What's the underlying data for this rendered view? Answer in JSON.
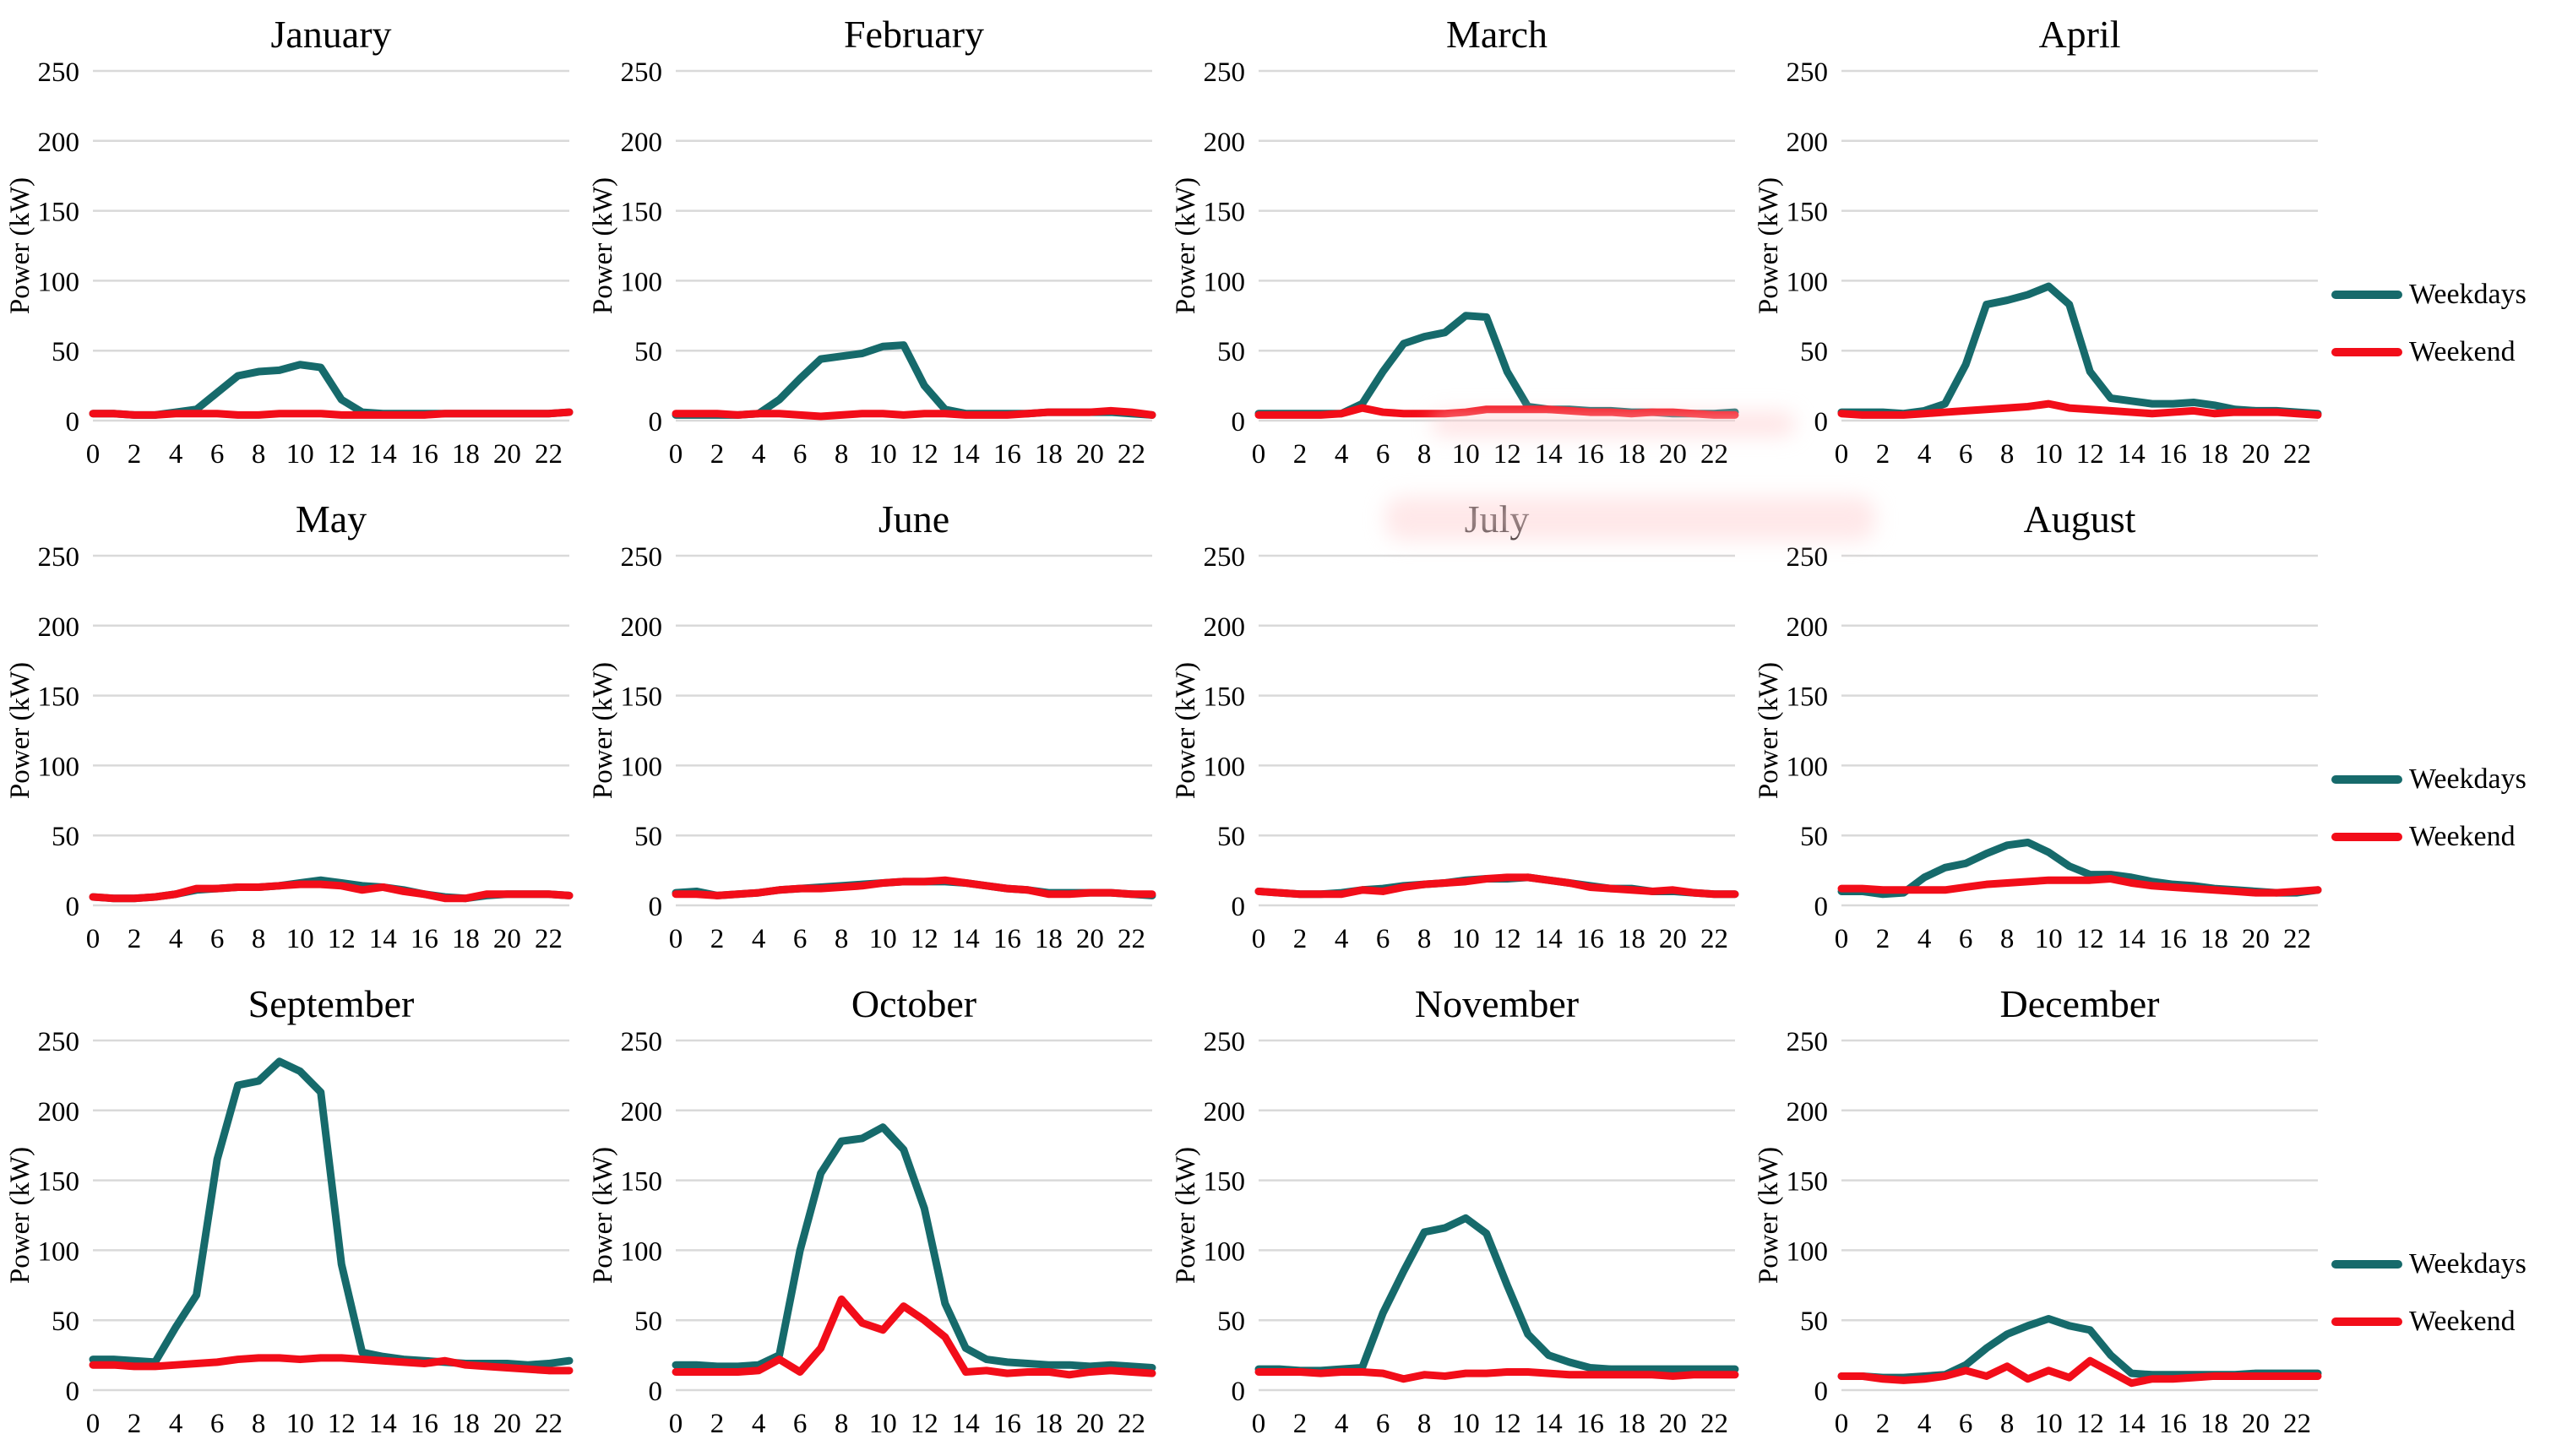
{
  "figure_title": "Monthly daily load profiles",
  "ylabel": "Power (kW)",
  "legend": {
    "weekdays_label": "Weekdays",
    "weekend_label": "Weekend"
  },
  "colors": {
    "weekdays": "#166a6b",
    "weekend": "#f20d19",
    "gridline": "#d9d9d9",
    "text": "#000000"
  },
  "axes": {
    "ylim": [
      0,
      250
    ],
    "yticks": [
      0,
      50,
      100,
      150,
      200,
      250
    ],
    "xlim": [
      0,
      23
    ],
    "xticks": [
      0,
      2,
      4,
      6,
      8,
      10,
      12,
      14,
      16,
      18,
      20,
      22
    ],
    "grid": "horizontal"
  },
  "chart_data": [
    {
      "type": "line",
      "title": "January",
      "series": [
        {
          "name": "Weekdays",
          "values": [
            5,
            5,
            4,
            4,
            6,
            8,
            20,
            32,
            35,
            36,
            40,
            38,
            15,
            6,
            5,
            5,
            5,
            5,
            5,
            5,
            5,
            5,
            5,
            6
          ]
        },
        {
          "name": "Weekend",
          "values": [
            5,
            5,
            4,
            4,
            5,
            5,
            5,
            4,
            4,
            5,
            5,
            5,
            4,
            4,
            4,
            4,
            4,
            5,
            5,
            5,
            5,
            5,
            5,
            6
          ]
        }
      ]
    },
    {
      "type": "line",
      "title": "February",
      "series": [
        {
          "name": "Weekdays",
          "values": [
            4,
            4,
            4,
            4,
            5,
            15,
            30,
            44,
            46,
            48,
            53,
            54,
            25,
            8,
            5,
            5,
            5,
            5,
            6,
            6,
            6,
            6,
            5,
            4
          ]
        },
        {
          "name": "Weekend",
          "values": [
            5,
            5,
            5,
            4,
            5,
            5,
            4,
            3,
            4,
            5,
            5,
            4,
            5,
            5,
            4,
            4,
            4,
            5,
            6,
            6,
            6,
            7,
            6,
            4
          ]
        }
      ]
    },
    {
      "type": "line",
      "title": "March",
      "series": [
        {
          "name": "Weekdays",
          "values": [
            5,
            5,
            5,
            5,
            5,
            12,
            35,
            55,
            60,
            63,
            75,
            74,
            35,
            10,
            8,
            8,
            7,
            7,
            6,
            6,
            5,
            5,
            5,
            6
          ]
        },
        {
          "name": "Weekend",
          "values": [
            4,
            4,
            4,
            4,
            5,
            9,
            6,
            5,
            5,
            5,
            6,
            8,
            8,
            8,
            8,
            7,
            6,
            6,
            5,
            6,
            6,
            5,
            4,
            4
          ]
        }
      ]
    },
    {
      "type": "line",
      "title": "April",
      "series": [
        {
          "name": "Weekdays",
          "values": [
            6,
            6,
            6,
            5,
            7,
            12,
            40,
            83,
            86,
            90,
            96,
            83,
            35,
            16,
            14,
            12,
            12,
            13,
            11,
            8,
            7,
            7,
            6,
            5
          ]
        },
        {
          "name": "Weekend",
          "values": [
            5,
            4,
            4,
            4,
            5,
            6,
            7,
            8,
            9,
            10,
            12,
            9,
            8,
            7,
            6,
            5,
            6,
            7,
            5,
            6,
            6,
            6,
            5,
            4
          ]
        }
      ]
    },
    {
      "type": "line",
      "title": "May",
      "series": [
        {
          "name": "Weekdays",
          "values": [
            6,
            5,
            5,
            6,
            8,
            11,
            12,
            13,
            13,
            14,
            16,
            18,
            16,
            14,
            13,
            11,
            8,
            6,
            5,
            7,
            8,
            8,
            8,
            7
          ]
        },
        {
          "name": "Weekend",
          "values": [
            6,
            5,
            5,
            6,
            8,
            12,
            12,
            13,
            13,
            14,
            15,
            15,
            14,
            11,
            13,
            10,
            8,
            5,
            5,
            8,
            8,
            8,
            8,
            7
          ]
        }
      ]
    },
    {
      "type": "line",
      "title": "June",
      "series": [
        {
          "name": "Weekdays",
          "values": [
            9,
            10,
            7,
            8,
            9,
            11,
            12,
            13,
            14,
            15,
            16,
            17,
            17,
            17,
            16,
            14,
            12,
            11,
            9,
            9,
            9,
            9,
            8,
            7
          ]
        },
        {
          "name": "Weekend",
          "values": [
            8,
            8,
            7,
            8,
            9,
            11,
            12,
            12,
            13,
            14,
            16,
            17,
            17,
            18,
            16,
            14,
            12,
            11,
            8,
            8,
            9,
            9,
            8,
            8
          ]
        }
      ]
    },
    {
      "type": "line",
      "title": "July",
      "series": [
        {
          "name": "Weekdays",
          "values": [
            10,
            9,
            8,
            8,
            9,
            11,
            12,
            14,
            15,
            16,
            18,
            19,
            19,
            20,
            18,
            16,
            14,
            12,
            12,
            10,
            10,
            9,
            8,
            8
          ]
        },
        {
          "name": "Weekend",
          "values": [
            10,
            9,
            8,
            8,
            8,
            11,
            10,
            13,
            15,
            16,
            17,
            19,
            20,
            20,
            18,
            16,
            13,
            12,
            11,
            10,
            11,
            9,
            8,
            8
          ]
        }
      ]
    },
    {
      "type": "line",
      "title": "August",
      "series": [
        {
          "name": "Weekdays",
          "values": [
            10,
            10,
            8,
            9,
            20,
            27,
            30,
            37,
            43,
            45,
            38,
            28,
            22,
            22,
            20,
            17,
            15,
            14,
            12,
            11,
            10,
            9,
            9,
            11
          ]
        },
        {
          "name": "Weekend",
          "values": [
            12,
            12,
            11,
            11,
            11,
            11,
            13,
            15,
            16,
            17,
            18,
            18,
            18,
            19,
            16,
            14,
            13,
            12,
            11,
            10,
            9,
            9,
            10,
            11
          ]
        }
      ]
    },
    {
      "type": "line",
      "title": "September",
      "series": [
        {
          "name": "Weekdays",
          "values": [
            22,
            22,
            21,
            20,
            45,
            68,
            165,
            218,
            221,
            235,
            228,
            213,
            90,
            27,
            24,
            22,
            21,
            20,
            19,
            19,
            19,
            18,
            19,
            21
          ]
        },
        {
          "name": "Weekend",
          "values": [
            18,
            18,
            17,
            17,
            18,
            19,
            20,
            22,
            23,
            23,
            22,
            23,
            23,
            22,
            21,
            20,
            19,
            21,
            18,
            17,
            16,
            15,
            14,
            14
          ]
        }
      ]
    },
    {
      "type": "line",
      "title": "October",
      "series": [
        {
          "name": "Weekdays",
          "values": [
            18,
            18,
            17,
            17,
            18,
            25,
            100,
            155,
            178,
            180,
            188,
            172,
            130,
            62,
            30,
            22,
            20,
            19,
            18,
            18,
            17,
            18,
            17,
            16
          ]
        },
        {
          "name": "Weekend",
          "values": [
            13,
            13,
            13,
            13,
            14,
            22,
            13,
            30,
            65,
            48,
            43,
            60,
            50,
            38,
            13,
            14,
            12,
            13,
            13,
            11,
            13,
            14,
            13,
            12
          ]
        }
      ]
    },
    {
      "type": "line",
      "title": "November",
      "series": [
        {
          "name": "Weekdays",
          "values": [
            15,
            15,
            14,
            14,
            15,
            16,
            55,
            85,
            113,
            116,
            123,
            112,
            75,
            40,
            25,
            20,
            16,
            15,
            15,
            15,
            15,
            15,
            15,
            15
          ]
        },
        {
          "name": "Weekend",
          "values": [
            13,
            13,
            13,
            12,
            13,
            13,
            12,
            8,
            11,
            10,
            12,
            12,
            13,
            13,
            12,
            11,
            11,
            11,
            11,
            11,
            10,
            11,
            11,
            11
          ]
        }
      ]
    },
    {
      "type": "line",
      "title": "December",
      "series": [
        {
          "name": "Weekdays",
          "values": [
            10,
            10,
            9,
            9,
            10,
            11,
            18,
            30,
            40,
            46,
            51,
            46,
            43,
            25,
            12,
            11,
            11,
            11,
            11,
            11,
            12,
            12,
            12,
            12
          ]
        },
        {
          "name": "Weekend",
          "values": [
            10,
            10,
            8,
            7,
            8,
            10,
            14,
            10,
            17,
            8,
            14,
            9,
            21,
            13,
            5,
            8,
            8,
            9,
            10,
            10,
            10,
            10,
            10,
            10
          ]
        }
      ]
    }
  ]
}
